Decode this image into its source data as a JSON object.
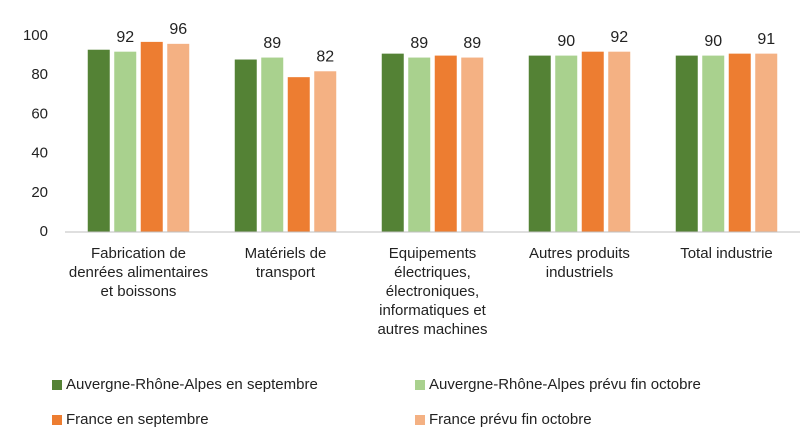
{
  "chart_data": {
    "type": "bar",
    "categories": [
      "Fabrication de denrées alimentaires et boissons",
      "Matériels de transport",
      "Equipements électriques, électroniques, informatiques et autres machines",
      "Autres produits industriels",
      "Total industrie"
    ],
    "series": [
      {
        "name": "Auvergne-Rhône-Alpes en septembre",
        "color": "#548235",
        "values": [
          93,
          88,
          91,
          90,
          90
        ],
        "labels": false
      },
      {
        "name": "Auvergne-Rhône-Alpes prévu fin octobre",
        "color": "#a9d18e",
        "values": [
          92,
          89,
          89,
          90,
          90
        ],
        "labels": true
      },
      {
        "name": "France en septembre",
        "color": "#ed7d31",
        "values": [
          97,
          79,
          90,
          92,
          91
        ],
        "labels": false
      },
      {
        "name": "France prévu fin octobre",
        "color": "#f4b183",
        "values": [
          96,
          82,
          89,
          92,
          91
        ],
        "labels": true
      }
    ],
    "ylim": [
      0,
      100
    ],
    "yticks": [
      0,
      20,
      40,
      60,
      80,
      100
    ],
    "grid": false
  }
}
